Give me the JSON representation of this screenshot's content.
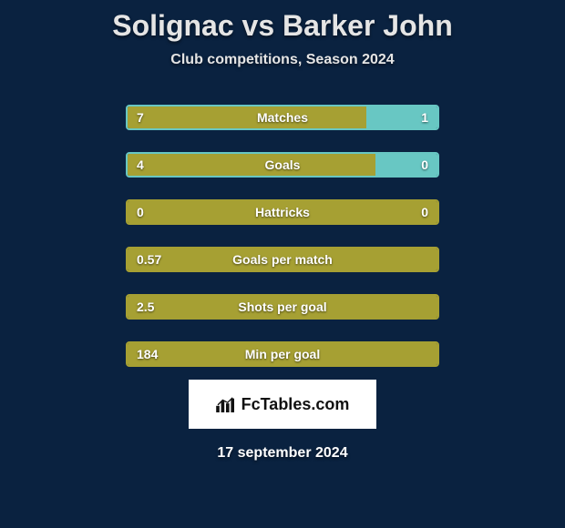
{
  "title": "Solignac vs Barker John",
  "subtitle": "Club competitions, Season 2024",
  "colors": {
    "left_fill": "#a6a033",
    "right_fill": "#68c7c3",
    "border_default": "#a6a033",
    "avatar": "#f5f5f5",
    "background": "#0a2240"
  },
  "stats": [
    {
      "label": "Matches",
      "left_value": "7",
      "right_value": "1",
      "left_pct": 77,
      "right_pct": 23,
      "border": "#68c7c3",
      "show_left_avatar": true,
      "show_right_avatar": true
    },
    {
      "label": "Goals",
      "left_value": "4",
      "right_value": "0",
      "left_pct": 80,
      "right_pct": 20,
      "border": "#68c7c3",
      "show_left_avatar": true,
      "show_right_avatar": true
    },
    {
      "label": "Hattricks",
      "left_value": "0",
      "right_value": "0",
      "left_pct": 100,
      "right_pct": 0,
      "border": "#a6a033",
      "show_left_avatar": false,
      "show_right_avatar": false
    },
    {
      "label": "Goals per match",
      "left_value": "0.57",
      "right_value": "",
      "left_pct": 100,
      "right_pct": 0,
      "border": "#a6a033",
      "show_left_avatar": false,
      "show_right_avatar": false
    },
    {
      "label": "Shots per goal",
      "left_value": "2.5",
      "right_value": "",
      "left_pct": 100,
      "right_pct": 0,
      "border": "#a6a033",
      "show_left_avatar": false,
      "show_right_avatar": false
    },
    {
      "label": "Min per goal",
      "left_value": "184",
      "right_value": "",
      "left_pct": 100,
      "right_pct": 0,
      "border": "#a6a033",
      "show_left_avatar": false,
      "show_right_avatar": false
    }
  ],
  "branding": {
    "text": "FcTables.com"
  },
  "date": "17 september 2024"
}
